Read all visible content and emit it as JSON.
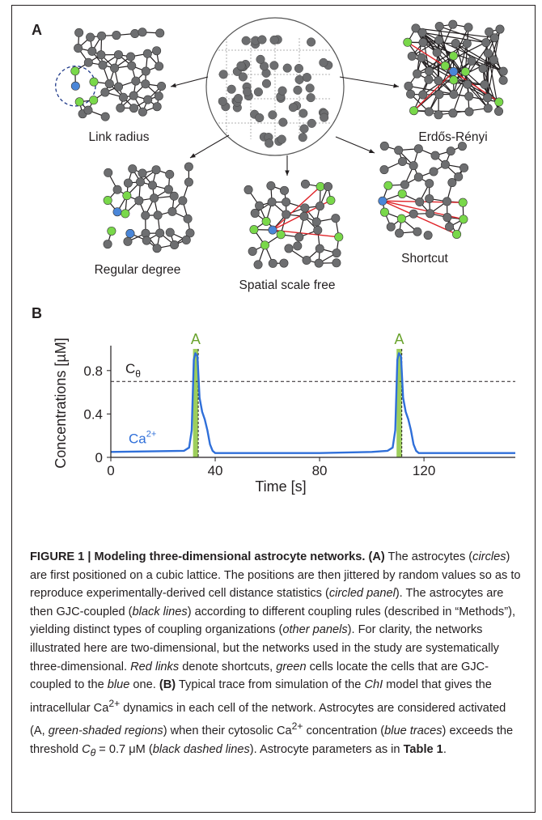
{
  "panelA": {
    "letter": "A",
    "networks": [
      {
        "key": "link_radius",
        "label": "Link radius"
      },
      {
        "key": "erdos_renyi",
        "label": "Erdős-Rényi"
      },
      {
        "key": "regular_degree",
        "label": "Regular degree"
      },
      {
        "key": "spatial_scale_free",
        "label": "Spatial scale free"
      },
      {
        "key": "shortcut",
        "label": "Shortcut"
      }
    ],
    "colors": {
      "node": "#6d6e70",
      "coupled": "#79d84a",
      "target": "#4a86d8",
      "shortcut": "#e0252a",
      "edge": "#231f20"
    }
  },
  "panelB": {
    "letter": "B",
    "chart_data": {
      "type": "line",
      "xlabel": "Time [s]",
      "ylabel": "Concentrations [µM]",
      "xlim": [
        0,
        155
      ],
      "ylim": [
        0,
        1.0
      ],
      "xticks": [
        0,
        40,
        80,
        120
      ],
      "yticks": [
        0,
        0.4,
        0.8
      ],
      "threshold": {
        "label_base": "C",
        "label_sub": "θ",
        "value": 0.7
      },
      "series": [
        {
          "name_base": "Ca",
          "name_sup": "2+",
          "color": "#2f6fd9",
          "x": [
            0,
            28,
            30,
            31,
            31.8,
            32.4,
            33.2,
            34,
            35,
            36,
            37,
            38,
            39,
            40,
            45,
            60,
            80,
            100,
            106,
            108,
            109,
            109.8,
            110.4,
            111.2,
            112,
            113,
            114,
            115,
            116,
            117,
            118,
            125,
            140,
            155
          ],
          "y": [
            0.05,
            0.06,
            0.09,
            0.25,
            0.9,
            0.96,
            0.93,
            0.55,
            0.42,
            0.35,
            0.25,
            0.12,
            0.06,
            0.04,
            0.04,
            0.04,
            0.04,
            0.05,
            0.06,
            0.09,
            0.25,
            0.9,
            0.96,
            0.93,
            0.55,
            0.42,
            0.35,
            0.25,
            0.12,
            0.06,
            0.04,
            0.04,
            0.04,
            0.04
          ]
        }
      ],
      "activation": {
        "label": "A",
        "color": "#8cc63f",
        "intervals": [
          [
            31.5,
            33.5
          ],
          [
            109.5,
            111.5
          ]
        ]
      }
    }
  },
  "caption": {
    "title": "FIGURE 1 | Modeling three-dimensional astrocyte networks.",
    "tagA": "(A)",
    "a1": " The astrocytes (",
    "a1i": "circles",
    "a2": ") are first positioned on a cubic lattice. The positions are then jittered by random values so as to reproduce experimentally-derived cell distance statistics (",
    "a2i": "circled panel",
    "a3": "). The astrocytes are then GJC-coupled (",
    "a3i": "black lines",
    "a4": ") according to different coupling rules (described in “Methods”), yielding distinct types of coupling organizations (",
    "a4i": "other panels",
    "a5": "). For clarity, the networks illustrated here are two-dimensional, but the networks used in the study are systematically three-dimensional. ",
    "a5i": "Red links",
    "a6": " denote shortcuts, ",
    "a6i": "green",
    "a7": " cells locate the cells that are GJC-coupled to the ",
    "a7i": "blue",
    "a8": " one.",
    "tagB": "(B)",
    "b1": " Typical trace from simulation of the ",
    "b1i": "ChI",
    "b2": " model that gives the intracellular Ca",
    "b2s": "2+",
    "b3": " dynamics in each cell of the network. Astrocytes are considered activated (A, ",
    "b3i": "green-shaded regions",
    "b4": ") when their cytosolic Ca",
    "b4s": "2+",
    "b5": " concentration (",
    "b5i": "blue traces",
    "b6": ") exceeds the threshold ",
    "b6m": "C",
    "b6ms": "θ",
    "b6e": " = 0.7 μM (",
    "b6i": "black dashed lines",
    "b7": "). Astrocyte parameters as in ",
    "b7b": "Table 1",
    "b8": "."
  }
}
